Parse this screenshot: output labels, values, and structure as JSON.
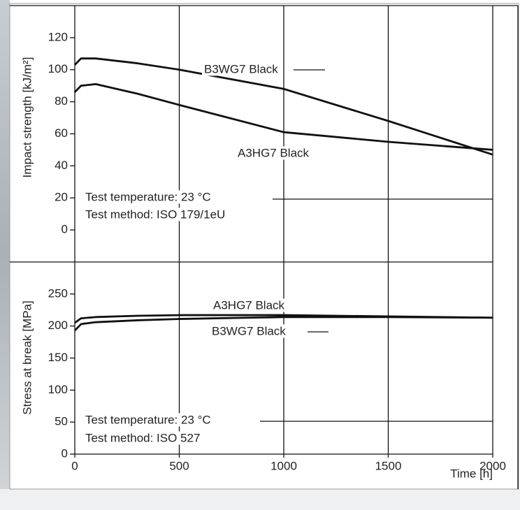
{
  "chart_data": [
    {
      "type": "line",
      "y_label": "Impact strength [kJ/m²]",
      "x": [
        0,
        30,
        100,
        300,
        500,
        1000,
        1500,
        2000
      ],
      "series": [
        {
          "name": "B3WG7 Black",
          "color": "#111111",
          "values": [
            103,
            107,
            107,
            104,
            100,
            88,
            68,
            47
          ]
        },
        {
          "name": "A3HG7 Black",
          "color": "#111111",
          "values": [
            86,
            90,
            91,
            85,
            78,
            61,
            55,
            50
          ]
        }
      ],
      "annotations": [
        "Test temperature: 23 °C",
        "Test method: ISO 179/1eU"
      ],
      "xlim": [
        0,
        2000
      ],
      "ylim": [
        -20,
        140
      ],
      "yticks": [
        0,
        20,
        40,
        60,
        80,
        100,
        120
      ]
    },
    {
      "type": "line",
      "y_label": "Stress at break [MPa]",
      "x_label": "Time [h]",
      "x": [
        0,
        30,
        100,
        300,
        500,
        1000,
        1500,
        2000
      ],
      "series": [
        {
          "name": "A3HG7 Black",
          "color": "#111111",
          "values": [
            205,
            212,
            214,
            216,
            217,
            217,
            215,
            213
          ]
        },
        {
          "name": "B3WG7 Black",
          "color": "#111111",
          "values": [
            193,
            203,
            206,
            209,
            211,
            214,
            214,
            213
          ]
        }
      ],
      "annotations": [
        "Test temperature: 23 °C",
        "Test method: ISO 527"
      ],
      "xlim": [
        0,
        2000
      ],
      "xticks": [
        0,
        500,
        1000,
        1500,
        2000
      ],
      "ylim": [
        0,
        300
      ],
      "yticks": [
        0,
        50,
        100,
        150,
        200,
        250
      ]
    }
  ]
}
